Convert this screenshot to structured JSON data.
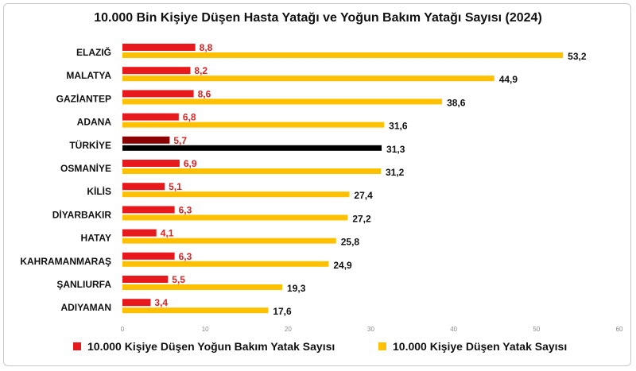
{
  "chart_data": {
    "type": "bar",
    "orientation": "horizontal",
    "title": "10.000 Bin Kişiye Düşen Hasta Yatağı ve Yoğun Bakım Yatağı Sayısı (2024)",
    "categories": [
      "ELAZIĞ",
      "MALATYA",
      "GAZİANTEP",
      "ADANA",
      "TÜRKİYE",
      "OSMANİYE",
      "KİLİS",
      "DİYARBAKIR",
      "HATAY",
      "KAHRAMANMARAŞ",
      "ŞANLIURFA",
      "ADIYAMAN"
    ],
    "series": [
      {
        "name": "10.000 Kişiye Düşen Yoğun Bakım Yatak Sayısı",
        "values": [
          8.8,
          8.2,
          8.6,
          6.8,
          5.7,
          6.9,
          5.1,
          6.3,
          4.1,
          6.3,
          5.5,
          3.4
        ],
        "labels": [
          "8,8",
          "8,2",
          "8,6",
          "6,8",
          "5,7",
          "6,9",
          "5,1",
          "6,3",
          "4,1",
          "6,3",
          "5,5",
          "3,4"
        ],
        "color": "#e8191c",
        "highlight_color": "#8b0000",
        "label_color": "#e02020"
      },
      {
        "name": "10.000 Kişiye Düşen Yatak Sayısı",
        "values": [
          53.2,
          44.9,
          38.6,
          31.6,
          31.3,
          31.2,
          27.4,
          27.2,
          25.8,
          24.9,
          19.3,
          17.6
        ],
        "labels": [
          "53,2",
          "44,9",
          "38,6",
          "31,6",
          "31,3",
          "31,2",
          "27,4",
          "27,2",
          "25,8",
          "24,9",
          "19,3",
          "17,6"
        ],
        "color": "#ffc000",
        "highlight_color": "#000000",
        "label_color": "#111111"
      }
    ],
    "highlight_category": "TÜRKİYE",
    "xlim": [
      0,
      60
    ],
    "xticks": [
      "0",
      "10",
      "20",
      "30",
      "40",
      "50",
      "60"
    ],
    "grid": false,
    "legend_position": "bottom"
  }
}
